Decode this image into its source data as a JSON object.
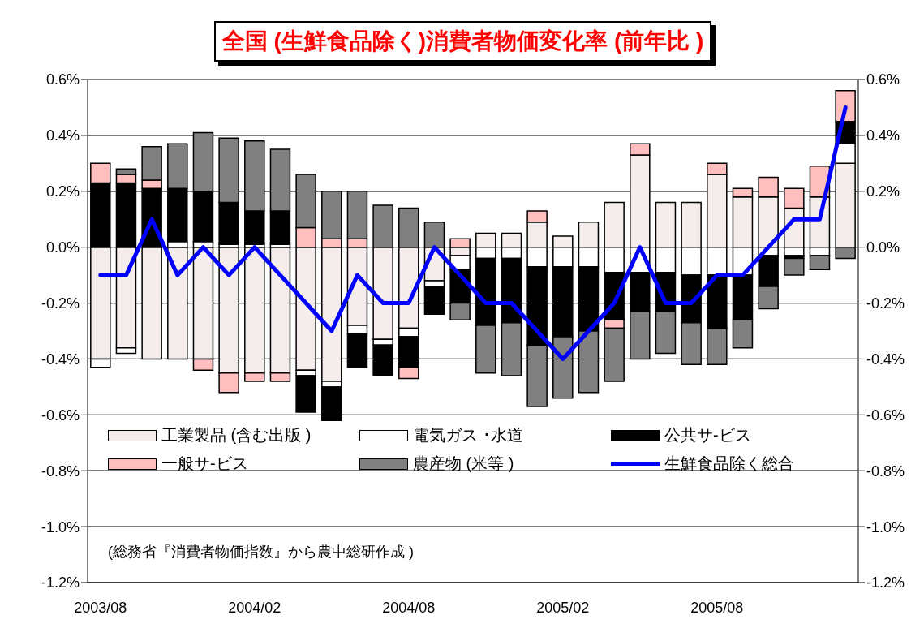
{
  "chart_data": {
    "type": "bar",
    "title": "全国 (生鮮食品除く)消費者物価変化率 (前年比 )",
    "categories": [
      "2003/08",
      null,
      null,
      null,
      null,
      null,
      "2004/02",
      null,
      null,
      null,
      null,
      null,
      "2004/08",
      null,
      null,
      null,
      null,
      null,
      "2005/02",
      null,
      null,
      null,
      null,
      null,
      "2005/08",
      null,
      null,
      null,
      null,
      null
    ],
    "series": [
      {
        "name": "工業製品 (含む出版 )",
        "color": "#f5ecec",
        "values": [
          -0.4,
          -0.36,
          -0.4,
          -0.4,
          -0.4,
          -0.45,
          -0.45,
          -0.45,
          -0.44,
          -0.48,
          -0.28,
          -0.33,
          -0.29,
          -0.12,
          -0.03,
          0.05,
          0.05,
          0.09,
          0.04,
          0.09,
          0.16,
          0.33,
          0.16,
          0.16,
          0.26,
          0.18,
          0.18,
          0.14,
          0.18,
          0.3
        ]
      },
      {
        "name": "電気ガス ･水道",
        "color": "#ffffff",
        "values": [
          -0.03,
          -0.02,
          0,
          0.02,
          0.02,
          0.01,
          0.01,
          0.01,
          -0.02,
          -0.02,
          -0.03,
          -0.02,
          -0.03,
          -0.02,
          -0.05,
          -0.04,
          -0.04,
          -0.07,
          -0.07,
          -0.07,
          -0.09,
          -0.09,
          -0.09,
          -0.1,
          -0.1,
          -0.1,
          -0.03,
          -0.03,
          -0.03,
          0.07
        ]
      },
      {
        "name": "公共サ-ビス",
        "color": "#000000",
        "values": [
          0.23,
          0.23,
          0.21,
          0.19,
          0.18,
          0.15,
          0.12,
          0.12,
          -0.13,
          -0.12,
          -0.12,
          -0.11,
          -0.11,
          -0.1,
          -0.12,
          -0.24,
          -0.23,
          -0.28,
          -0.25,
          -0.23,
          -0.17,
          -0.14,
          -0.14,
          -0.17,
          -0.19,
          -0.16,
          -0.11,
          -0.01,
          0,
          0.08
        ]
      },
      {
        "name": "一般サ-ビス",
        "color": "#ffbfbf",
        "values": [
          0.07,
          0.03,
          0.03,
          0,
          -0.04,
          -0.07,
          -0.03,
          -0.03,
          0.07,
          0.03,
          0.03,
          0,
          -0.04,
          0,
          0.03,
          0,
          0,
          0.04,
          0,
          0,
          -0.03,
          0.04,
          0,
          0,
          0.04,
          0.03,
          0.07,
          0.07,
          0.11,
          0.11
        ]
      },
      {
        "name": "農産物 (米等 )",
        "color": "#808080",
        "values": [
          0,
          0.02,
          0.12,
          0.16,
          0.21,
          0.23,
          0.25,
          0.22,
          0.19,
          0.17,
          0.17,
          0.15,
          0.14,
          0.09,
          -0.06,
          -0.17,
          -0.19,
          -0.22,
          -0.22,
          -0.22,
          -0.19,
          -0.17,
          -0.15,
          -0.15,
          -0.13,
          -0.1,
          -0.08,
          -0.06,
          -0.05,
          -0.04
        ]
      },
      {
        "name": "生鮮食品除く総合",
        "type": "line",
        "color": "#0000ff",
        "values": [
          -0.1,
          -0.1,
          0.1,
          -0.1,
          0,
          -0.1,
          0,
          -0.1,
          -0.2,
          -0.3,
          -0.1,
          -0.2,
          -0.2,
          0,
          -0.1,
          -0.2,
          -0.2,
          -0.3,
          -0.4,
          -0.3,
          -0.2,
          0,
          -0.2,
          -0.2,
          -0.1,
          -0.1,
          0,
          0.1,
          0.1,
          0.5
        ]
      }
    ],
    "stacked": true,
    "ylim": [
      -1.2,
      0.6
    ],
    "yticks": [
      {
        "value": -1.2,
        "label": "-1.2%"
      },
      {
        "value": -1.0,
        "label": "-1.0%"
      },
      {
        "value": -0.8,
        "label": "-0.8%"
      },
      {
        "value": -0.6,
        "label": "-0.6%"
      },
      {
        "value": -0.4,
        "label": "-0.4%"
      },
      {
        "value": -0.2,
        "label": "-0.2%"
      },
      {
        "value": 0,
        "label": "0.0%"
      },
      {
        "value": 0.2,
        "label": "0.2%"
      },
      {
        "value": 0.4,
        "label": "0.4%"
      },
      {
        "value": 0.6,
        "label": "0.6%"
      }
    ],
    "y2lim": [
      -1.2,
      0.6
    ],
    "y2ticks": [
      {
        "value": -1.2,
        "label": "-1.2%"
      },
      {
        "value": -1.0,
        "label": "-1.0%"
      },
      {
        "value": -0.8,
        "label": "-0.8%"
      },
      {
        "value": -0.6,
        "label": "-0.6%"
      },
      {
        "value": -0.4,
        "label": "-0.4%"
      },
      {
        "value": -0.2,
        "label": "-0.2%"
      },
      {
        "value": 0,
        "label": "0.0%"
      },
      {
        "value": 0.2,
        "label": "0.2%"
      },
      {
        "value": 0.4,
        "label": "0.4%"
      },
      {
        "value": 0.6,
        "label": "0.6%"
      }
    ],
    "grid": "y",
    "legend": "bottom",
    "annotations": [
      "(総務省『消費者物価指数』から農中総研作成 )"
    ]
  }
}
